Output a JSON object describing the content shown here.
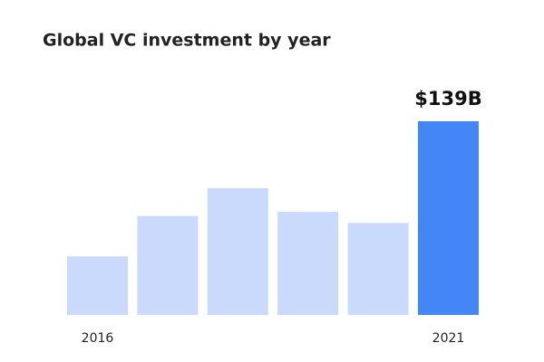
{
  "chart_data": {
    "type": "bar",
    "title": "Global VC investment by year",
    "categories": [
      "2016",
      null,
      null,
      null,
      null,
      "2021"
    ],
    "values": [
      42,
      71,
      91,
      74,
      66,
      139
    ],
    "value_labels": [
      null,
      null,
      null,
      null,
      null,
      "$139B"
    ],
    "colors": [
      "#c9dafc",
      "#c9dafc",
      "#c9dafc",
      "#c9dafc",
      "#c9dafc",
      "#4287f5"
    ]
  }
}
